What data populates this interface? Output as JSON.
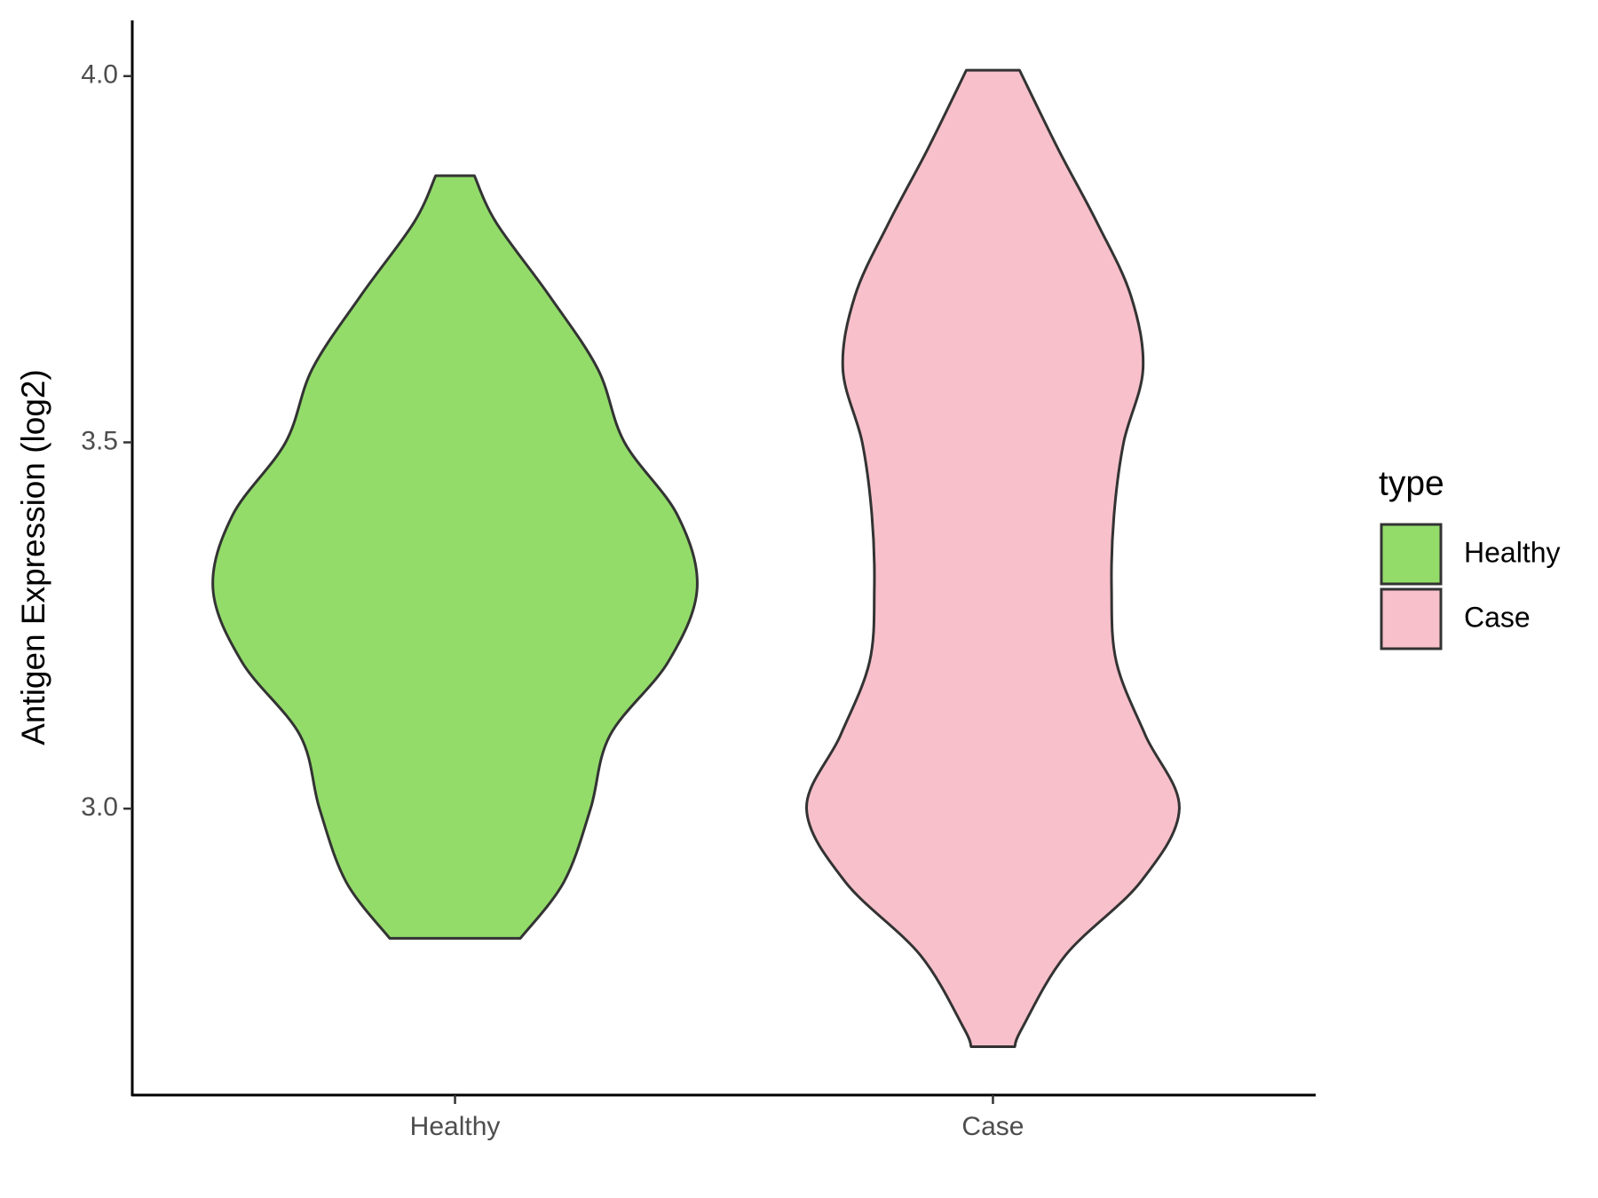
{
  "chart_data": {
    "type": "violin",
    "y_label": "Antigen Expression (log2)",
    "categories": [
      "Healthy",
      "Case"
    ],
    "legend_title": "type",
    "legend_position": "right",
    "ylim": [
      2.609,
      4.076
    ],
    "yticks": [
      {
        "value": 3.0,
        "label": "3.0"
      },
      {
        "value": 3.5,
        "label": "3.5"
      },
      {
        "value": 4.0,
        "label": "4.0"
      }
    ],
    "grid": false,
    "series": [
      {
        "name": "Healthy",
        "color": "#93dc6a",
        "y": [
          3.864,
          3.8,
          3.7,
          3.6,
          3.5,
          3.4,
          3.3,
          3.2,
          3.1,
          3.0,
          2.9,
          2.823
        ],
        "density": [
          0.08,
          0.17,
          0.39,
          0.59,
          0.7,
          0.92,
          1.0,
          0.88,
          0.64,
          0.56,
          0.45,
          0.27
        ]
      },
      {
        "name": "Case",
        "color": "#f8c0cb",
        "y": [
          4.008,
          3.9,
          3.8,
          3.7,
          3.6,
          3.5,
          3.4,
          3.3,
          3.2,
          3.1,
          3.0,
          2.9,
          2.8,
          2.7,
          2.675
        ],
        "density": [
          0.11,
          0.27,
          0.43,
          0.57,
          0.62,
          0.54,
          0.5,
          0.49,
          0.51,
          0.63,
          0.77,
          0.61,
          0.3,
          0.12,
          0.09
        ]
      }
    ]
  }
}
